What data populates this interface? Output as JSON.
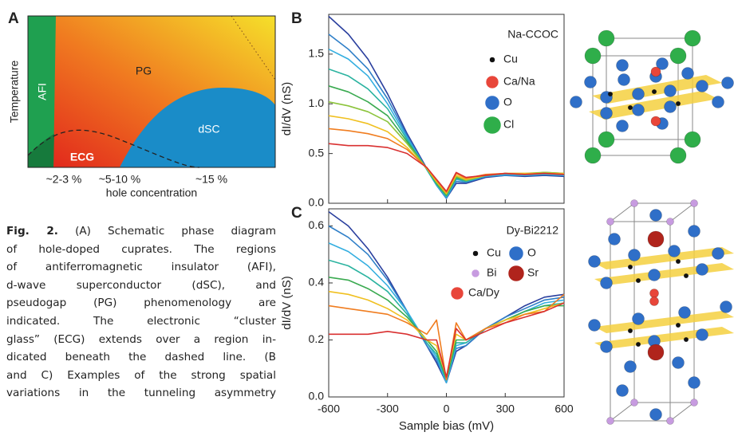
{
  "panel_a": {
    "panel_label": "A",
    "ylabel": "Temperature",
    "xlabel": "hole concentration",
    "regions": [
      "AFI",
      "PG",
      "ECG",
      "dSC"
    ],
    "xtick_labels": [
      "~2-3 %",
      "~5-10 %",
      "~15 %"
    ]
  },
  "caption": {
    "label": "Fig. 2.",
    "lines": [
      "(A) Schematic phase diagram",
      "of hole-doped cuprates. The regions",
      "of antiferromagnetic insulator (AFI),",
      "d-wave superconductor (dSC), and",
      "pseudogap (PG) phenomenology are",
      "indicated. The electronic “cluster",
      "glass” (ECG) extends over a region in-",
      "dicated beneath the dashed line. (B",
      "and C) Examples of the strong spatial",
      "variations in the tunneling asymmetry"
    ]
  },
  "chart_data": [
    {
      "type": "line",
      "panel_label": "B",
      "title": "Na-CCOC",
      "ylabel": "dI/dV (nS)",
      "x": [
        -600,
        -500,
        -400,
        -300,
        -200,
        -100,
        -50,
        0,
        50,
        100,
        200,
        300,
        400,
        500,
        600
      ],
      "xlim": [
        -600,
        600
      ],
      "xticks": [
        -600,
        -300,
        0,
        300,
        600
      ],
      "ylim": [
        0,
        1.9
      ],
      "yticks": [
        {
          "value": 0,
          "label": "0.0"
        },
        0.5,
        {
          "value": 1,
          "label": "1.0"
        },
        1.5
      ],
      "legend": [
        {
          "label": "Cu",
          "color": "#111111"
        },
        {
          "label": "Ca/Na",
          "color": "#e8463a"
        },
        {
          "label": "O",
          "color": "#2f6fc8"
        },
        {
          "label": "Cl",
          "color": "#2fae4a"
        }
      ],
      "series": [
        {
          "color": "#2a3f9e",
          "values": [
            1.88,
            1.7,
            1.45,
            1.1,
            0.7,
            0.35,
            0.18,
            0.05,
            0.2,
            0.2,
            0.26,
            0.28,
            0.27,
            0.28,
            0.27
          ]
        },
        {
          "color": "#2f7fc8",
          "values": [
            1.7,
            1.55,
            1.35,
            1.05,
            0.68,
            0.34,
            0.18,
            0.05,
            0.22,
            0.21,
            0.27,
            0.28,
            0.28,
            0.29,
            0.28
          ]
        },
        {
          "color": "#33aee0",
          "values": [
            1.55,
            1.45,
            1.28,
            1.0,
            0.66,
            0.34,
            0.18,
            0.06,
            0.24,
            0.22,
            0.27,
            0.29,
            0.28,
            0.29,
            0.28
          ]
        },
        {
          "color": "#2bb3a0",
          "values": [
            1.35,
            1.28,
            1.15,
            0.95,
            0.64,
            0.34,
            0.19,
            0.07,
            0.25,
            0.22,
            0.28,
            0.3,
            0.29,
            0.3,
            0.29
          ]
        },
        {
          "color": "#3aaa50",
          "values": [
            1.18,
            1.12,
            1.02,
            0.88,
            0.62,
            0.35,
            0.2,
            0.08,
            0.26,
            0.23,
            0.28,
            0.3,
            0.29,
            0.31,
            0.3
          ]
        },
        {
          "color": "#8cc43c",
          "values": [
            1.02,
            0.98,
            0.92,
            0.82,
            0.6,
            0.35,
            0.21,
            0.09,
            0.27,
            0.23,
            0.28,
            0.3,
            0.3,
            0.31,
            0.3
          ]
        },
        {
          "color": "#f0c020",
          "values": [
            0.88,
            0.85,
            0.8,
            0.72,
            0.56,
            0.35,
            0.22,
            0.1,
            0.28,
            0.24,
            0.28,
            0.3,
            0.3,
            0.3,
            0.3
          ]
        },
        {
          "color": "#f07d20",
          "values": [
            0.75,
            0.73,
            0.7,
            0.65,
            0.54,
            0.36,
            0.23,
            0.11,
            0.3,
            0.25,
            0.29,
            0.3,
            0.29,
            0.3,
            0.29
          ]
        },
        {
          "color": "#d93030",
          "values": [
            0.6,
            0.58,
            0.58,
            0.56,
            0.5,
            0.36,
            0.24,
            0.12,
            0.31,
            0.26,
            0.28,
            0.3,
            0.29,
            0.3,
            0.29
          ]
        }
      ]
    },
    {
      "type": "line",
      "panel_label": "C",
      "title": "Dy-Bi2212",
      "ylabel": "dI/dV (nS)",
      "xlabel": "Sample bias (mV)",
      "x": [
        -600,
        -500,
        -400,
        -300,
        -200,
        -100,
        -50,
        0,
        50,
        100,
        200,
        300,
        400,
        500,
        600
      ],
      "xlim": [
        -600,
        600
      ],
      "xticks": [
        -600,
        -300,
        0,
        300,
        600
      ],
      "ylim": [
        0,
        0.66
      ],
      "yticks": [
        {
          "value": 0,
          "label": "0.0"
        },
        0.2,
        0.4,
        0.6
      ],
      "legend": [
        {
          "label": "Cu",
          "color": "#111111"
        },
        {
          "label": "O",
          "color": "#2f6fc8"
        },
        {
          "label": "Bi",
          "color": "#c79be0"
        },
        {
          "label": "Sr",
          "color": "#b0241c"
        },
        {
          "label": "Ca/Dy",
          "color": "#e8463a"
        }
      ],
      "series": [
        {
          "color": "#2a3f9e",
          "values": [
            0.65,
            0.6,
            0.52,
            0.42,
            0.3,
            0.18,
            0.12,
            0.05,
            0.16,
            0.18,
            0.24,
            0.28,
            0.32,
            0.35,
            0.36
          ]
        },
        {
          "color": "#2f7fc8",
          "values": [
            0.6,
            0.56,
            0.5,
            0.41,
            0.3,
            0.18,
            0.13,
            0.05,
            0.17,
            0.18,
            0.24,
            0.28,
            0.31,
            0.34,
            0.35
          ]
        },
        {
          "color": "#33aee0",
          "values": [
            0.54,
            0.51,
            0.46,
            0.39,
            0.3,
            0.19,
            0.14,
            0.05,
            0.18,
            0.19,
            0.24,
            0.27,
            0.3,
            0.33,
            0.34
          ]
        },
        {
          "color": "#2bb3a0",
          "values": [
            0.48,
            0.46,
            0.42,
            0.37,
            0.29,
            0.19,
            0.15,
            0.06,
            0.19,
            0.19,
            0.24,
            0.27,
            0.3,
            0.32,
            0.33
          ]
        },
        {
          "color": "#3aaa50",
          "values": [
            0.42,
            0.41,
            0.38,
            0.34,
            0.28,
            0.2,
            0.16,
            0.06,
            0.2,
            0.2,
            0.24,
            0.27,
            0.3,
            0.32,
            0.32
          ]
        },
        {
          "color": "#f0c020",
          "values": [
            0.37,
            0.36,
            0.34,
            0.31,
            0.27,
            0.2,
            0.18,
            0.07,
            0.22,
            0.2,
            0.24,
            0.27,
            0.29,
            0.31,
            0.33
          ]
        },
        {
          "color": "#f07d20",
          "values": [
            0.32,
            0.31,
            0.3,
            0.29,
            0.26,
            0.22,
            0.27,
            0.06,
            0.26,
            0.2,
            0.24,
            0.26,
            0.29,
            0.3,
            0.36
          ]
        },
        {
          "color": "#d93030",
          "values": [
            0.22,
            0.22,
            0.22,
            0.23,
            0.22,
            0.2,
            0.2,
            0.07,
            0.24,
            0.2,
            0.23,
            0.26,
            0.28,
            0.3,
            0.33
          ]
        }
      ]
    }
  ]
}
